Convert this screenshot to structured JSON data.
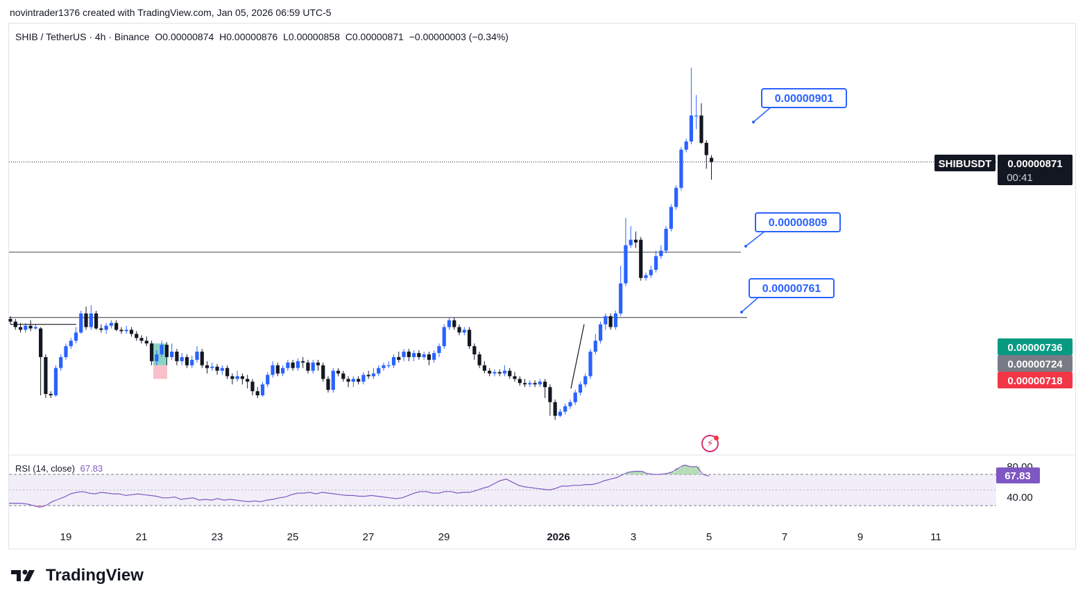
{
  "header": {
    "attribution": "novintrader1376 created with TradingView.com, Jan 05, 2026 06:59 UTC-5"
  },
  "legend": {
    "symbol": "SHIB / TetherUS · 4h · Binance",
    "open": "O0.00000874",
    "high": "H0.00000876",
    "low": "L0.00000858",
    "close": "C0.00000871",
    "change": "−0.00000003 (−0.34%)"
  },
  "rsi": {
    "label": "RSI (14, close)",
    "value": "67.83",
    "levels": [
      "80.00",
      "40.00"
    ]
  },
  "badges": {
    "ticker": "SHIBUSDT",
    "last_price": "0.00000871",
    "countdown": "00:41",
    "green": "0.00000736",
    "gray": "0.00000724",
    "red": "0.00000718"
  },
  "annotations": [
    "0.00000901",
    "0.00000809",
    "0.00000761"
  ],
  "footer": {
    "brand": "TradingView"
  },
  "colors": {
    "up": "#2962ff",
    "down": "#131722",
    "accent": "#2962ff",
    "rsi": "#7e57c2",
    "green_badge": "#089981",
    "red_badge": "#f23645",
    "gray_badge": "#787b86"
  },
  "chart_data": {
    "type": "candlestick",
    "y_ticks": [
      "0.00000950",
      "0.00000900",
      "0.00000850",
      "0.00000800",
      "0.00000750",
      "0.00000700"
    ],
    "x_ticks": [
      "19",
      "21",
      "23",
      "25",
      "27",
      "29",
      "2026",
      "3",
      "5",
      "7",
      "9",
      "11"
    ],
    "zones": [
      {
        "from": 9e-06,
        "to": 9.15e-06
      },
      {
        "from": 7.94e-06,
        "to": 8.17e-06
      },
      {
        "from": 7.52e-06,
        "to": 7.61e-06
      }
    ],
    "candles": [
      [
        7.56,
        7.54,
        7.58,
        7.52
      ],
      [
        7.54,
        7.5,
        7.56,
        7.48
      ],
      [
        7.5,
        7.48,
        7.53,
        7.46
      ],
      [
        7.48,
        7.51,
        7.53,
        7.46
      ],
      [
        7.51,
        7.49,
        7.55,
        7.47
      ],
      [
        7.49,
        7.5,
        7.52,
        7.48
      ],
      [
        7.49,
        7.28,
        7.5,
        7.0
      ],
      [
        7.28,
        7.01,
        7.3,
        6.98
      ],
      [
        7.01,
        7.0,
        7.03,
        6.98
      ],
      [
        7.0,
        7.2,
        7.22,
        6.99
      ],
      [
        7.2,
        7.28,
        7.3,
        7.18
      ],
      [
        7.28,
        7.36,
        7.38,
        7.26
      ],
      [
        7.36,
        7.4,
        7.42,
        7.34
      ],
      [
        7.4,
        7.46,
        7.5,
        7.38
      ],
      [
        7.46,
        7.6,
        7.62,
        7.45
      ],
      [
        7.6,
        7.5,
        7.65,
        7.48
      ],
      [
        7.5,
        7.6,
        7.66,
        7.48
      ],
      [
        7.6,
        7.49,
        7.62,
        7.48
      ],
      [
        7.49,
        7.48,
        7.52,
        7.46
      ],
      [
        7.48,
        7.51,
        7.53,
        7.45
      ],
      [
        7.51,
        7.53,
        7.55,
        7.49
      ],
      [
        7.53,
        7.48,
        7.55,
        7.47
      ],
      [
        7.48,
        7.47,
        7.5,
        7.45
      ],
      [
        7.47,
        7.48,
        7.51,
        7.45
      ],
      [
        7.48,
        7.45,
        7.5,
        7.43
      ],
      [
        7.45,
        7.42,
        7.47,
        7.4
      ],
      [
        7.42,
        7.4,
        7.44,
        7.38
      ],
      [
        7.4,
        7.38,
        7.43,
        7.36
      ],
      [
        7.38,
        7.25,
        7.4,
        7.22
      ],
      [
        7.25,
        7.3,
        7.33,
        7.22
      ],
      [
        7.3,
        7.37,
        7.4,
        7.28
      ],
      [
        7.37,
        7.28,
        7.39,
        7.22
      ],
      [
        7.28,
        7.32,
        7.38,
        7.26
      ],
      [
        7.32,
        7.25,
        7.34,
        7.22
      ],
      [
        7.25,
        7.28,
        7.31,
        7.22
      ],
      [
        7.28,
        7.22,
        7.3,
        7.2
      ],
      [
        7.22,
        7.26,
        7.29,
        7.2
      ],
      [
        7.26,
        7.32,
        7.36,
        7.24
      ],
      [
        7.32,
        7.22,
        7.34,
        7.2
      ],
      [
        7.22,
        7.2,
        7.25,
        7.16
      ],
      [
        7.2,
        7.21,
        7.24,
        7.18
      ],
      [
        7.21,
        7.18,
        7.23,
        7.15
      ],
      [
        7.18,
        7.2,
        7.22,
        7.15
      ],
      [
        7.2,
        7.14,
        7.22,
        7.12
      ],
      [
        7.14,
        7.12,
        7.16,
        7.08
      ],
      [
        7.12,
        7.14,
        7.18,
        7.1
      ],
      [
        7.14,
        7.12,
        7.16,
        7.08
      ],
      [
        7.12,
        7.1,
        7.15,
        7.05
      ],
      [
        7.1,
        7.03,
        7.12,
        7.0
      ],
      [
        7.03,
        7.0,
        7.06,
        6.98
      ],
      [
        7.0,
        7.08,
        7.1,
        6.99
      ],
      [
        7.08,
        7.15,
        7.17,
        7.06
      ],
      [
        7.15,
        7.22,
        7.25,
        7.13
      ],
      [
        7.22,
        7.16,
        7.24,
        7.14
      ],
      [
        7.16,
        7.2,
        7.22,
        7.14
      ],
      [
        7.2,
        7.24,
        7.26,
        7.18
      ],
      [
        7.24,
        7.2,
        7.26,
        7.18
      ],
      [
        7.2,
        7.25,
        7.27,
        7.18
      ],
      [
        7.25,
        7.24,
        7.28,
        7.2
      ],
      [
        7.24,
        7.18,
        7.26,
        7.16
      ],
      [
        7.18,
        7.24,
        7.26,
        7.16
      ],
      [
        7.24,
        7.22,
        7.26,
        7.18
      ],
      [
        7.22,
        7.12,
        7.24,
        7.1
      ],
      [
        7.12,
        7.04,
        7.14,
        7.02
      ],
      [
        7.04,
        7.18,
        7.2,
        7.02
      ],
      [
        7.18,
        7.16,
        7.2,
        7.14
      ],
      [
        7.16,
        7.12,
        7.18,
        7.1
      ],
      [
        7.12,
        7.1,
        7.14,
        7.06
      ],
      [
        7.1,
        7.12,
        7.14,
        7.06
      ],
      [
        7.12,
        7.1,
        7.14,
        7.08
      ],
      [
        7.1,
        7.15,
        7.17,
        7.08
      ],
      [
        7.15,
        7.14,
        7.18,
        7.12
      ],
      [
        7.14,
        7.16,
        7.2,
        7.12
      ],
      [
        7.16,
        7.2,
        7.22,
        7.14
      ],
      [
        7.2,
        7.22,
        7.24,
        7.18
      ],
      [
        7.22,
        7.22,
        7.25,
        7.2
      ],
      [
        7.22,
        7.28,
        7.3,
        7.2
      ],
      [
        7.28,
        7.26,
        7.32,
        7.24
      ],
      [
        7.28,
        7.32,
        7.34,
        7.25
      ],
      [
        7.32,
        7.28,
        7.34,
        7.25
      ],
      [
        7.28,
        7.31,
        7.33,
        7.25
      ],
      [
        7.31,
        7.28,
        7.33,
        7.26
      ],
      [
        7.28,
        7.3,
        7.32,
        7.26
      ],
      [
        7.3,
        7.26,
        7.32,
        7.22
      ],
      [
        7.26,
        7.31,
        7.33,
        7.24
      ],
      [
        7.31,
        7.36,
        7.38,
        7.28
      ],
      [
        7.36,
        7.5,
        7.52,
        7.34
      ],
      [
        7.5,
        7.55,
        7.57,
        7.48
      ],
      [
        7.55,
        7.5,
        7.57,
        7.48
      ],
      [
        7.5,
        7.46,
        7.52,
        7.44
      ],
      [
        7.46,
        7.48,
        7.5,
        7.44
      ],
      [
        7.48,
        7.36,
        7.5,
        7.34
      ],
      [
        7.36,
        7.3,
        7.38,
        7.26
      ],
      [
        7.3,
        7.22,
        7.32,
        7.2
      ],
      [
        7.22,
        7.18,
        7.25,
        7.16
      ],
      [
        7.18,
        7.16,
        7.2,
        7.14
      ],
      [
        7.16,
        7.17,
        7.19,
        7.14
      ],
      [
        7.17,
        7.16,
        7.19,
        7.14
      ],
      [
        7.16,
        7.18,
        7.22,
        7.14
      ],
      [
        7.18,
        7.14,
        7.2,
        7.12
      ],
      [
        7.14,
        7.12,
        7.17,
        7.1
      ],
      [
        7.12,
        7.09,
        7.14,
        7.07
      ],
      [
        7.09,
        7.08,
        7.12,
        7.06
      ],
      [
        7.08,
        7.09,
        7.11,
        7.06
      ],
      [
        7.09,
        7.08,
        7.11,
        7.06
      ],
      [
        7.08,
        7.1,
        7.12,
        7.06
      ],
      [
        7.1,
        7.06,
        7.12,
        6.98
      ],
      [
        7.06,
        6.95,
        7.08,
        6.85
      ],
      [
        6.95,
        6.85,
        6.97,
        6.82
      ],
      [
        6.85,
        6.88,
        6.9,
        6.84
      ],
      [
        6.88,
        6.92,
        6.94,
        6.86
      ],
      [
        6.92,
        6.95,
        6.97,
        6.9
      ],
      [
        6.95,
        7.02,
        7.04,
        6.93
      ],
      [
        7.02,
        7.08,
        7.1,
        7.0
      ],
      [
        7.08,
        7.14,
        7.16,
        7.06
      ],
      [
        7.14,
        7.32,
        7.34,
        7.12
      ],
      [
        7.32,
        7.4,
        7.45,
        7.3
      ],
      [
        7.4,
        7.52,
        7.54,
        7.38
      ],
      [
        7.52,
        7.58,
        7.6,
        7.48
      ],
      [
        7.58,
        7.5,
        7.6,
        7.48
      ],
      [
        7.5,
        7.6,
        7.62,
        7.48
      ],
      [
        7.6,
        7.82,
        7.95,
        7.58
      ],
      [
        7.82,
        8.1,
        8.3,
        7.8
      ],
      [
        8.1,
        8.14,
        8.24,
        8.08
      ],
      [
        8.14,
        8.12,
        8.2,
        8.08
      ],
      [
        8.14,
        7.86,
        8.16,
        7.84
      ],
      [
        7.86,
        7.88,
        7.9,
        7.84
      ],
      [
        7.88,
        7.92,
        7.95,
        7.86
      ],
      [
        7.92,
        8.02,
        8.06,
        7.9
      ],
      [
        8.02,
        8.06,
        8.1,
        8.0
      ],
      [
        8.06,
        8.22,
        8.24,
        8.04
      ],
      [
        8.22,
        8.38,
        8.4,
        8.2
      ],
      [
        8.38,
        8.52,
        8.54,
        8.36
      ],
      [
        8.52,
        8.8,
        8.82,
        8.5
      ],
      [
        8.8,
        8.86,
        8.88,
        8.78
      ],
      [
        8.86,
        9.05,
        9.4,
        8.84
      ],
      [
        9.05,
        9.05,
        9.2,
        8.95
      ],
      [
        9.05,
        8.85,
        9.14,
        8.84
      ],
      [
        8.85,
        8.76,
        8.87,
        8.66
      ],
      [
        8.74,
        8.71,
        8.76,
        8.58
      ]
    ],
    "rsi_values": [
      33,
      33,
      33,
      32,
      30,
      28,
      30,
      35,
      38,
      41,
      45,
      47,
      48,
      46,
      45,
      47,
      46,
      45,
      45,
      43,
      44,
      45,
      44,
      43,
      42,
      40,
      40,
      41,
      38,
      39,
      40,
      37,
      38,
      37,
      39,
      37,
      38,
      37,
      36,
      35,
      36,
      35,
      37,
      38,
      40,
      41,
      44,
      46,
      46,
      47,
      45,
      47,
      46,
      45,
      44,
      43,
      43,
      42,
      42,
      43,
      42,
      41,
      40,
      39,
      40,
      43,
      46,
      48,
      48,
      46,
      46,
      48,
      48,
      46,
      47,
      47,
      49,
      52,
      54,
      58,
      62,
      64,
      60,
      56,
      54,
      53,
      52,
      51,
      50,
      52,
      55,
      55,
      56,
      56,
      57,
      57,
      59,
      62,
      64,
      66,
      70,
      73,
      74,
      74,
      71,
      70,
      70,
      71,
      73,
      78,
      82,
      80,
      80,
      70,
      67.83
    ]
  }
}
